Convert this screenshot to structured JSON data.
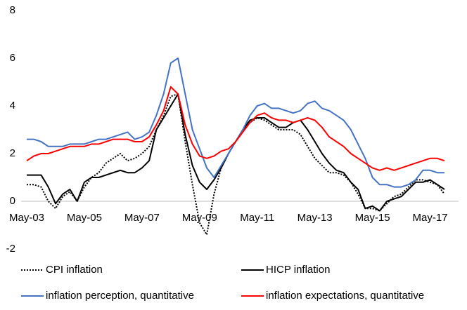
{
  "chart_data": {
    "type": "line",
    "categories": [
      "May-03",
      null,
      null,
      null,
      null,
      null,
      null,
      null,
      "May-05",
      null,
      null,
      null,
      null,
      null,
      null,
      null,
      "May-07",
      null,
      null,
      null,
      null,
      null,
      null,
      null,
      "May-09",
      null,
      null,
      null,
      null,
      null,
      null,
      null,
      "May-11",
      null,
      null,
      null,
      null,
      null,
      null,
      null,
      "May-13",
      null,
      null,
      null,
      null,
      null,
      null,
      null,
      "May-15",
      null,
      null,
      null,
      null,
      null,
      null,
      null,
      "May-17",
      null,
      null
    ],
    "ylim": [
      -2,
      8
    ],
    "yticks": [
      -2,
      0,
      2,
      4,
      6,
      8
    ],
    "series": [
      {
        "name": "CPI inflation",
        "color": "#000000",
        "line_style": "dotted",
        "values": [
          0.7,
          0.7,
          0.6,
          0.0,
          -0.3,
          0.2,
          0.4,
          0.0,
          0.6,
          1.0,
          1.2,
          1.6,
          1.8,
          2.0,
          1.7,
          1.8,
          2.0,
          2.3,
          3.0,
          3.6,
          4.4,
          4.5,
          2.5,
          0.7,
          -0.9,
          -1.4,
          0.3,
          1.4,
          2.0,
          2.5,
          3.0,
          3.3,
          3.5,
          3.4,
          3.2,
          3.0,
          3.0,
          3.0,
          2.8,
          2.3,
          1.8,
          1.5,
          1.2,
          1.2,
          1.1,
          0.8,
          0.3,
          -0.3,
          -0.3,
          -0.4,
          -0.1,
          0.2,
          0.3,
          0.6,
          0.9,
          0.9,
          0.8,
          0.7,
          0.3
        ]
      },
      {
        "name": "HICP inflation",
        "color": "#000000",
        "line_style": "solid",
        "values": [
          1.1,
          1.1,
          1.1,
          0.6,
          -0.1,
          0.3,
          0.5,
          0.0,
          0.8,
          1.0,
          1.0,
          1.1,
          1.2,
          1.3,
          1.2,
          1.2,
          1.4,
          1.7,
          3.0,
          3.5,
          4.0,
          4.5,
          2.8,
          1.5,
          0.8,
          0.5,
          0.9,
          1.4,
          2.0,
          2.5,
          3.0,
          3.4,
          3.5,
          3.5,
          3.3,
          3.1,
          3.1,
          3.3,
          3.4,
          3.0,
          2.5,
          2.0,
          1.6,
          1.3,
          1.2,
          0.8,
          0.5,
          -0.3,
          -0.2,
          -0.4,
          0.0,
          0.1,
          0.2,
          0.5,
          0.8,
          0.8,
          0.9,
          0.7,
          0.5
        ]
      },
      {
        "name": "inflation perception, quantitative",
        "color": "#4472c4",
        "line_style": "solid",
        "values": [
          2.6,
          2.6,
          2.5,
          2.3,
          2.3,
          2.3,
          2.4,
          2.4,
          2.4,
          2.5,
          2.6,
          2.6,
          2.7,
          2.8,
          2.9,
          2.6,
          2.7,
          2.9,
          3.6,
          4.5,
          5.8,
          6.0,
          4.5,
          3.0,
          2.2,
          1.4,
          1.0,
          1.5,
          2.0,
          2.5,
          3.0,
          3.6,
          4.0,
          4.1,
          3.9,
          3.9,
          3.8,
          3.7,
          3.8,
          4.1,
          4.2,
          3.9,
          3.8,
          3.6,
          3.4,
          3.0,
          2.4,
          1.8,
          1.0,
          0.7,
          0.7,
          0.6,
          0.6,
          0.7,
          0.9,
          1.3,
          1.3,
          1.2,
          1.2
        ]
      },
      {
        "name": "inflation expectations, quantitative",
        "color": "#ff0000",
        "line_style": "solid",
        "values": [
          1.7,
          1.9,
          2.0,
          2.0,
          2.1,
          2.2,
          2.3,
          2.3,
          2.3,
          2.4,
          2.4,
          2.5,
          2.6,
          2.6,
          2.6,
          2.5,
          2.5,
          2.7,
          3.2,
          3.8,
          4.8,
          4.5,
          3.2,
          2.4,
          1.9,
          1.8,
          1.9,
          2.1,
          2.2,
          2.5,
          2.9,
          3.3,
          3.6,
          3.7,
          3.5,
          3.4,
          3.4,
          3.3,
          3.4,
          3.5,
          3.4,
          3.1,
          2.7,
          2.5,
          2.3,
          2.0,
          1.8,
          1.6,
          1.4,
          1.3,
          1.4,
          1.3,
          1.4,
          1.5,
          1.6,
          1.7,
          1.8,
          1.8,
          1.7
        ]
      }
    ]
  }
}
